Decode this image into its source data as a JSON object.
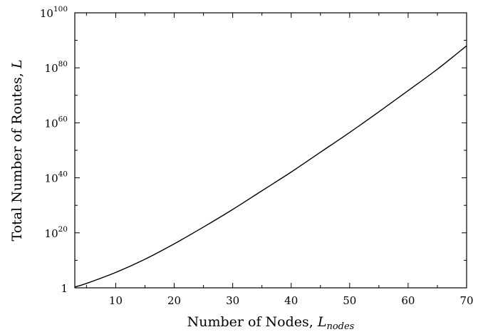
{
  "chart_data": {
    "type": "line",
    "xlabel": "Number of Nodes, ",
    "xlabel_symbol": "L",
    "xlabel_subscript": "nodes",
    "ylabel": "Total Number of Routes, ",
    "ylabel_symbol": "L",
    "y_scale": "log",
    "xlim": [
      3,
      70
    ],
    "ylim_log10": [
      0,
      100
    ],
    "x_ticks": [
      10,
      20,
      30,
      40,
      50,
      60,
      70
    ],
    "x_tick_labels": [
      "10",
      "20",
      "30",
      "40",
      "50",
      "60",
      "70"
    ],
    "y_ticks_log10": [
      0,
      20,
      40,
      60,
      80,
      100
    ],
    "y_tick_labels": [
      {
        "base": "1",
        "exp": ""
      },
      {
        "base": "10",
        "exp": "20"
      },
      {
        "base": "10",
        "exp": "40"
      },
      {
        "base": "10",
        "exp": "60"
      },
      {
        "base": "10",
        "exp": "80"
      },
      {
        "base": "10",
        "exp": "100"
      }
    ],
    "grid": false,
    "legend": "none",
    "line_color": "#000000",
    "series": [
      {
        "x": [
          3,
          5,
          10,
          15,
          20,
          25,
          30,
          35,
          40,
          45,
          50,
          55,
          60,
          65,
          70
        ],
        "y_log10": [
          0.3,
          1.6,
          5.6,
          10.4,
          16.0,
          22.1,
          28.5,
          35.3,
          42.1,
          49.3,
          56.5,
          64.0,
          71.7,
          79.5,
          88.0
        ]
      }
    ]
  }
}
